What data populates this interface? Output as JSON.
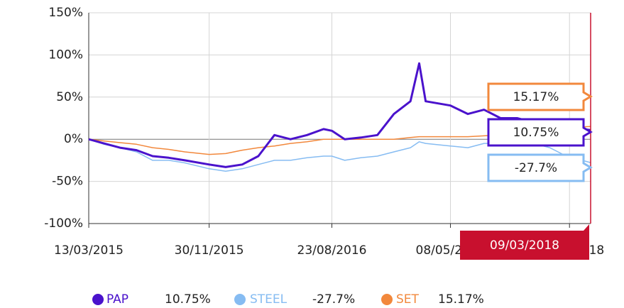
{
  "chart_data": {
    "type": "line",
    "x": [
      "13/03/2015",
      "15/04/2015",
      "20/05/2015",
      "25/06/2015",
      "30/07/2015",
      "03/09/2015",
      "08/10/2015",
      "30/11/2015",
      "05/01/2016",
      "10/02/2016",
      "16/03/2016",
      "20/04/2016",
      "25/05/2016",
      "30/06/2016",
      "05/08/2016",
      "23/08/2016",
      "20/09/2016",
      "25/10/2016",
      "30/11/2016",
      "05/01/2017",
      "10/02/2017",
      "01/03/2017",
      "15/03/2017",
      "08/05/2017",
      "15/06/2017",
      "20/07/2017",
      "25/08/2017",
      "30/09/2017",
      "05/11/2017",
      "10/12/2017",
      "15/01/2018",
      "09/03/2018"
    ],
    "series": [
      {
        "name": "PAP",
        "color": "#4a12cc",
        "end_label": "10.75%",
        "values": [
          0,
          -5,
          -10,
          -13,
          -20,
          -22,
          -25,
          -30,
          -33,
          -30,
          -20,
          5,
          0,
          5,
          12,
          10,
          0,
          2,
          5,
          30,
          45,
          90,
          45,
          40,
          30,
          35,
          25,
          25,
          20,
          18,
          15,
          10.75
        ]
      },
      {
        "name": "STEEL",
        "color": "#86bcf2",
        "end_label": "-27.7%",
        "values": [
          0,
          -6,
          -10,
          -15,
          -25,
          -25,
          -28,
          -35,
          -38,
          -35,
          -30,
          -25,
          -25,
          -22,
          -20,
          -20,
          -25,
          -22,
          -20,
          -15,
          -10,
          -3,
          -5,
          -8,
          -10,
          -5,
          -5,
          -3,
          -5,
          -10,
          -20,
          -27.7
        ]
      },
      {
        "name": "SET",
        "color": "#f2883c",
        "end_label": "15.17%",
        "values": [
          0,
          -2,
          -4,
          -6,
          -10,
          -12,
          -15,
          -18,
          -17,
          -13,
          -10,
          -8,
          -5,
          -3,
          0,
          0,
          0,
          0,
          0,
          0,
          2,
          3,
          3,
          3,
          3,
          4,
          5,
          8,
          10,
          12,
          14,
          15.17
        ]
      }
    ],
    "xlim": [
      "13/03/2015",
      "09/03/2018"
    ],
    "xticks": [
      "13/03/2015",
      "30/11/2015",
      "23/08/2016",
      "08/05/2017",
      "22/01/2018"
    ],
    "ylim": [
      -100,
      150
    ],
    "yticks": [
      {
        "value": -100,
        "label": "-100%"
      },
      {
        "value": -50,
        "label": "-50%"
      },
      {
        "value": 0,
        "label": "0%"
      },
      {
        "value": 50,
        "label": "50%"
      },
      {
        "value": 100,
        "label": "100%"
      },
      {
        "value": 150,
        "label": "150%"
      }
    ],
    "grid": true
  }
}
